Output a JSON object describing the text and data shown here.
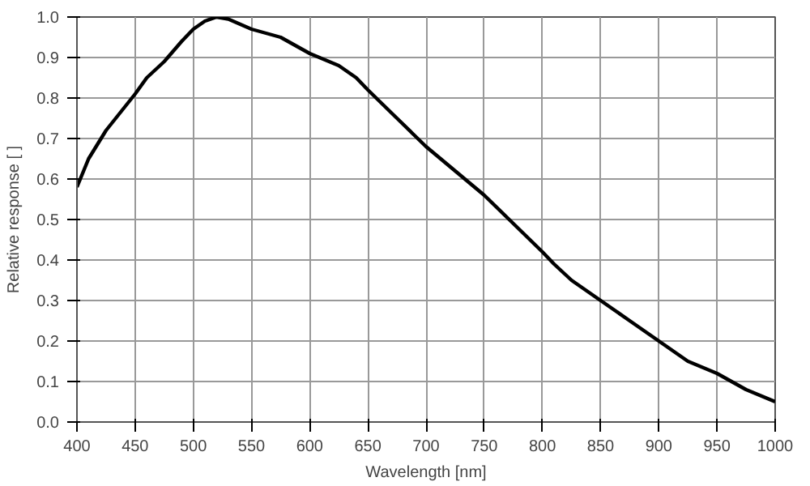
{
  "chart_data": {
    "type": "line",
    "xlabel": "Wavelength [nm]",
    "ylabel": "Relative response [ ]",
    "x": [
      400,
      410,
      425,
      450,
      460,
      475,
      490,
      500,
      510,
      520,
      530,
      550,
      575,
      600,
      625,
      640,
      650,
      675,
      700,
      725,
      750,
      775,
      800,
      810,
      825,
      850,
      875,
      900,
      925,
      950,
      975,
      1000
    ],
    "series": [
      {
        "color": "#000000",
        "values": [
          0.58,
          0.65,
          0.72,
          0.81,
          0.85,
          0.89,
          0.94,
          0.97,
          0.99,
          1.0,
          0.995,
          0.97,
          0.95,
          0.91,
          0.88,
          0.85,
          0.82,
          0.75,
          0.68,
          0.62,
          0.56,
          0.49,
          0.42,
          0.39,
          0.35,
          0.3,
          0.25,
          0.2,
          0.15,
          0.12,
          0.08,
          0.05
        ]
      }
    ],
    "xlim": [
      400,
      1000
    ],
    "ylim": [
      0,
      1
    ],
    "xticks": [
      400,
      450,
      500,
      550,
      600,
      650,
      700,
      750,
      800,
      850,
      900,
      950,
      1000
    ],
    "yticks": [
      {
        "value": 0,
        "label": "0.0"
      },
      0.1,
      0.2,
      0.3,
      0.4,
      0.5,
      0.6,
      0.7,
      0.8,
      0.9,
      {
        "value": 1,
        "label": "1.0"
      }
    ],
    "grid": true,
    "marker": "none",
    "line_style": "solid"
  }
}
